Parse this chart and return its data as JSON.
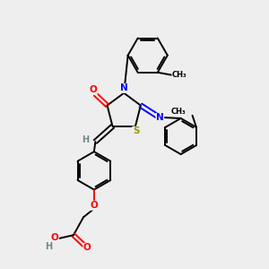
{
  "bg_color": "#eeeeee",
  "bond_color": "#000000",
  "atom_colors": {
    "O": "#ff0000",
    "N": "#0000ff",
    "S": "#999900",
    "H": "#6a8a8a",
    "C": "#000000"
  },
  "lw": 1.4
}
